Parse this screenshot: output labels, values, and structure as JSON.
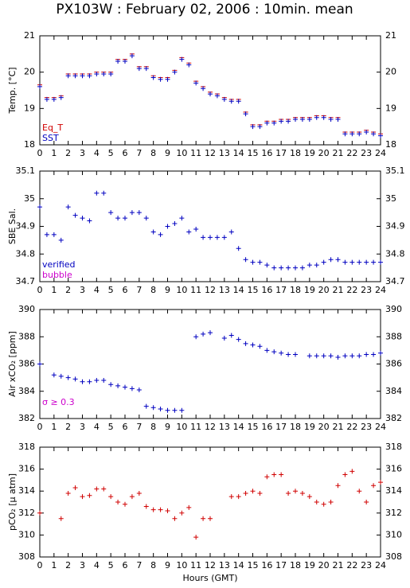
{
  "title": "PX103W : February 02, 2006 : 10min. mean",
  "chart_data": [
    {
      "type": "scatter",
      "ylabel": "Temp. [°C]",
      "xlim": [
        0,
        24
      ],
      "xticks": [
        0,
        1,
        2,
        3,
        4,
        5,
        6,
        7,
        8,
        9,
        10,
        11,
        12,
        13,
        14,
        15,
        16,
        17,
        18,
        19,
        20,
        21,
        22,
        23,
        24
      ],
      "ylim": [
        18,
        21
      ],
      "yticks": [
        18,
        19,
        20,
        21
      ],
      "legend": "lower left",
      "x": [
        0,
        0.5,
        1,
        1.5,
        2,
        2.5,
        3,
        3.5,
        4,
        4.5,
        5,
        5.5,
        6,
        6.5,
        7,
        7.5,
        8,
        8.5,
        9,
        9.5,
        10,
        10.5,
        11,
        11.5,
        12,
        12.5,
        13,
        13.5,
        14,
        14.5,
        15,
        15.5,
        16,
        16.5,
        17,
        17.5,
        18,
        18.5,
        19,
        19.5,
        20,
        20.5,
        21,
        21.5,
        22,
        22.5,
        23,
        23.5,
        24
      ],
      "series": [
        {
          "name": "Eq_T",
          "color": "#d00000",
          "marker": "-",
          "values": [
            19.65,
            19.3,
            19.3,
            19.35,
            19.95,
            19.95,
            19.95,
            19.95,
            20.0,
            20.0,
            20.0,
            20.35,
            20.35,
            20.5,
            20.15,
            20.15,
            19.9,
            19.85,
            19.85,
            20.05,
            20.4,
            20.25,
            19.75,
            19.6,
            19.45,
            19.4,
            19.3,
            19.25,
            19.25,
            18.9,
            18.55,
            18.55,
            18.65,
            18.65,
            18.7,
            18.7,
            18.75,
            18.75,
            18.75,
            18.8,
            18.8,
            18.75,
            18.75,
            18.35,
            18.35,
            18.35,
            18.4,
            18.35,
            18.3
          ]
        },
        {
          "name": "SST",
          "color": "#0000c0",
          "marker": "+",
          "values": [
            19.6,
            19.25,
            19.25,
            19.3,
            19.9,
            19.9,
            19.9,
            19.9,
            19.95,
            19.95,
            19.95,
            20.3,
            20.3,
            20.45,
            20.1,
            20.1,
            19.85,
            19.8,
            19.8,
            20.0,
            20.35,
            20.2,
            19.7,
            19.55,
            19.4,
            19.35,
            19.25,
            19.2,
            19.2,
            18.85,
            18.5,
            18.5,
            18.6,
            18.6,
            18.65,
            18.65,
            18.7,
            18.7,
            18.7,
            18.75,
            18.75,
            18.7,
            18.7,
            18.3,
            18.3,
            18.3,
            18.35,
            18.3,
            18.25
          ]
        }
      ]
    },
    {
      "type": "scatter",
      "ylabel": "SBE Sal.",
      "xlim": [
        0,
        24
      ],
      "xticks": [
        0,
        1,
        2,
        3,
        4,
        5,
        6,
        7,
        8,
        9,
        10,
        11,
        12,
        13,
        14,
        15,
        16,
        17,
        18,
        19,
        20,
        21,
        22,
        23,
        24
      ],
      "ylim": [
        34.7,
        35.1
      ],
      "yticks": [
        34.7,
        34.8,
        34.9,
        35,
        35.1
      ],
      "legend": "lower left",
      "x": [
        0,
        0.5,
        1,
        1.5,
        2,
        2.5,
        3,
        3.5,
        4,
        4.5,
        5,
        5.5,
        6,
        6.5,
        7,
        7.5,
        8,
        8.5,
        9,
        9.5,
        10,
        10.5,
        11,
        11.5,
        12,
        12.5,
        13,
        13.5,
        14,
        14.5,
        15,
        15.5,
        16,
        16.5,
        17,
        17.5,
        18,
        18.5,
        19,
        19.5,
        20,
        20.5,
        21,
        21.5,
        22,
        22.5,
        23,
        23.5,
        24
      ],
      "series": [
        {
          "name": "verified",
          "color": "#0000c0",
          "marker": "+",
          "values": [
            34.97,
            34.87,
            34.87,
            34.85,
            34.97,
            34.94,
            34.93,
            34.92,
            35.02,
            35.02,
            34.95,
            34.93,
            34.93,
            34.95,
            34.95,
            34.93,
            34.88,
            34.87,
            34.9,
            34.91,
            34.93,
            34.88,
            34.89,
            34.86,
            34.86,
            34.86,
            34.86,
            34.88,
            34.82,
            34.78,
            34.77,
            34.77,
            34.76,
            34.75,
            34.75,
            34.75,
            34.75,
            34.75,
            34.76,
            34.76,
            34.77,
            34.78,
            34.78,
            34.77,
            34.77,
            34.77,
            34.77,
            34.77,
            34.77
          ]
        },
        {
          "name": "bubble",
          "color": "#cc00cc",
          "marker": "+",
          "values": [
            null,
            null,
            null,
            null,
            null,
            null,
            null,
            null,
            null,
            null,
            null,
            null,
            null,
            null,
            null,
            null,
            null,
            null,
            null,
            null,
            null,
            null,
            null,
            null,
            null,
            null,
            null,
            null,
            null,
            null,
            null,
            null,
            null,
            null,
            null,
            null,
            null,
            null,
            null,
            null,
            null,
            null,
            null,
            null,
            null,
            null,
            null,
            null,
            null
          ]
        }
      ]
    },
    {
      "type": "scatter",
      "ylabel": "Air xCO₂ [ppm]",
      "annotation": "σ ≥ 0.3",
      "annotation_color": "#cc00cc",
      "xlim": [
        0,
        24
      ],
      "xticks": [
        0,
        1,
        2,
        3,
        4,
        5,
        6,
        7,
        8,
        9,
        10,
        11,
        12,
        13,
        14,
        15,
        16,
        17,
        18,
        19,
        20,
        21,
        22,
        23,
        24
      ],
      "ylim": [
        382,
        390
      ],
      "yticks": [
        382,
        384,
        386,
        388,
        390
      ],
      "x": [
        0,
        0.5,
        1,
        1.5,
        2,
        2.5,
        3,
        3.5,
        4,
        4.5,
        5,
        5.5,
        6,
        6.5,
        7,
        7.5,
        8,
        8.5,
        9,
        9.5,
        10,
        10.5,
        11,
        11.5,
        12,
        12.5,
        13,
        13.5,
        14,
        14.5,
        15,
        15.5,
        16,
        16.5,
        17,
        17.5,
        18,
        18.5,
        19,
        19.5,
        20,
        20.5,
        21,
        21.5,
        22,
        22.5,
        23,
        23.5,
        24
      ],
      "series": [
        {
          "color": "#0000c0",
          "marker": "+",
          "values": [
            386,
            null,
            385.2,
            385.1,
            385.0,
            384.9,
            384.7,
            384.7,
            384.8,
            384.8,
            384.5,
            384.4,
            384.3,
            384.2,
            384.1,
            382.9,
            382.8,
            382.7,
            382.6,
            382.6,
            382.6,
            null,
            388.0,
            388.2,
            388.3,
            null,
            387.9,
            388.1,
            387.8,
            387.5,
            387.4,
            387.3,
            387.0,
            386.9,
            386.8,
            386.7,
            386.7,
            null,
            386.6,
            386.6,
            386.6,
            386.6,
            386.5,
            386.6,
            386.6,
            386.6,
            386.7,
            386.7,
            386.8
          ]
        }
      ]
    },
    {
      "type": "scatter",
      "ylabel": "pCO₂ [μ atm]",
      "xlabel": "Hours (GMT)",
      "xlim": [
        0,
        24
      ],
      "xticks": [
        0,
        1,
        2,
        3,
        4,
        5,
        6,
        7,
        8,
        9,
        10,
        11,
        12,
        13,
        14,
        15,
        16,
        17,
        18,
        19,
        20,
        21,
        22,
        23,
        24
      ],
      "ylim": [
        308,
        318
      ],
      "yticks": [
        308,
        310,
        312,
        314,
        316,
        318
      ],
      "x": [
        0,
        0.5,
        1,
        1.5,
        2,
        2.5,
        3,
        3.5,
        4,
        4.5,
        5,
        5.5,
        6,
        6.5,
        7,
        7.5,
        8,
        8.5,
        9,
        9.5,
        10,
        10.5,
        11,
        11.5,
        12,
        12.5,
        13,
        13.5,
        14,
        14.5,
        15,
        15.5,
        16,
        16.5,
        17,
        17.5,
        18,
        18.5,
        19,
        19.5,
        20,
        20.5,
        21,
        21.5,
        22,
        22.5,
        23,
        23.5,
        24
      ],
      "series": [
        {
          "color": "#d00000",
          "marker": "+",
          "values": [
            312,
            null,
            null,
            311.5,
            313.8,
            314.3,
            313.5,
            313.6,
            314.2,
            314.2,
            313.5,
            313,
            312.8,
            313.5,
            313.8,
            312.6,
            312.3,
            312.3,
            312.2,
            311.5,
            312,
            312.5,
            309.8,
            311.5,
            311.5,
            null,
            null,
            313.5,
            313.5,
            313.8,
            314,
            313.8,
            315.3,
            315.5,
            315.5,
            313.8,
            314,
            313.8,
            313.5,
            313,
            312.8,
            313,
            314.5,
            315.5,
            315.8,
            314,
            313,
            314.5,
            314.8
          ]
        }
      ]
    }
  ]
}
